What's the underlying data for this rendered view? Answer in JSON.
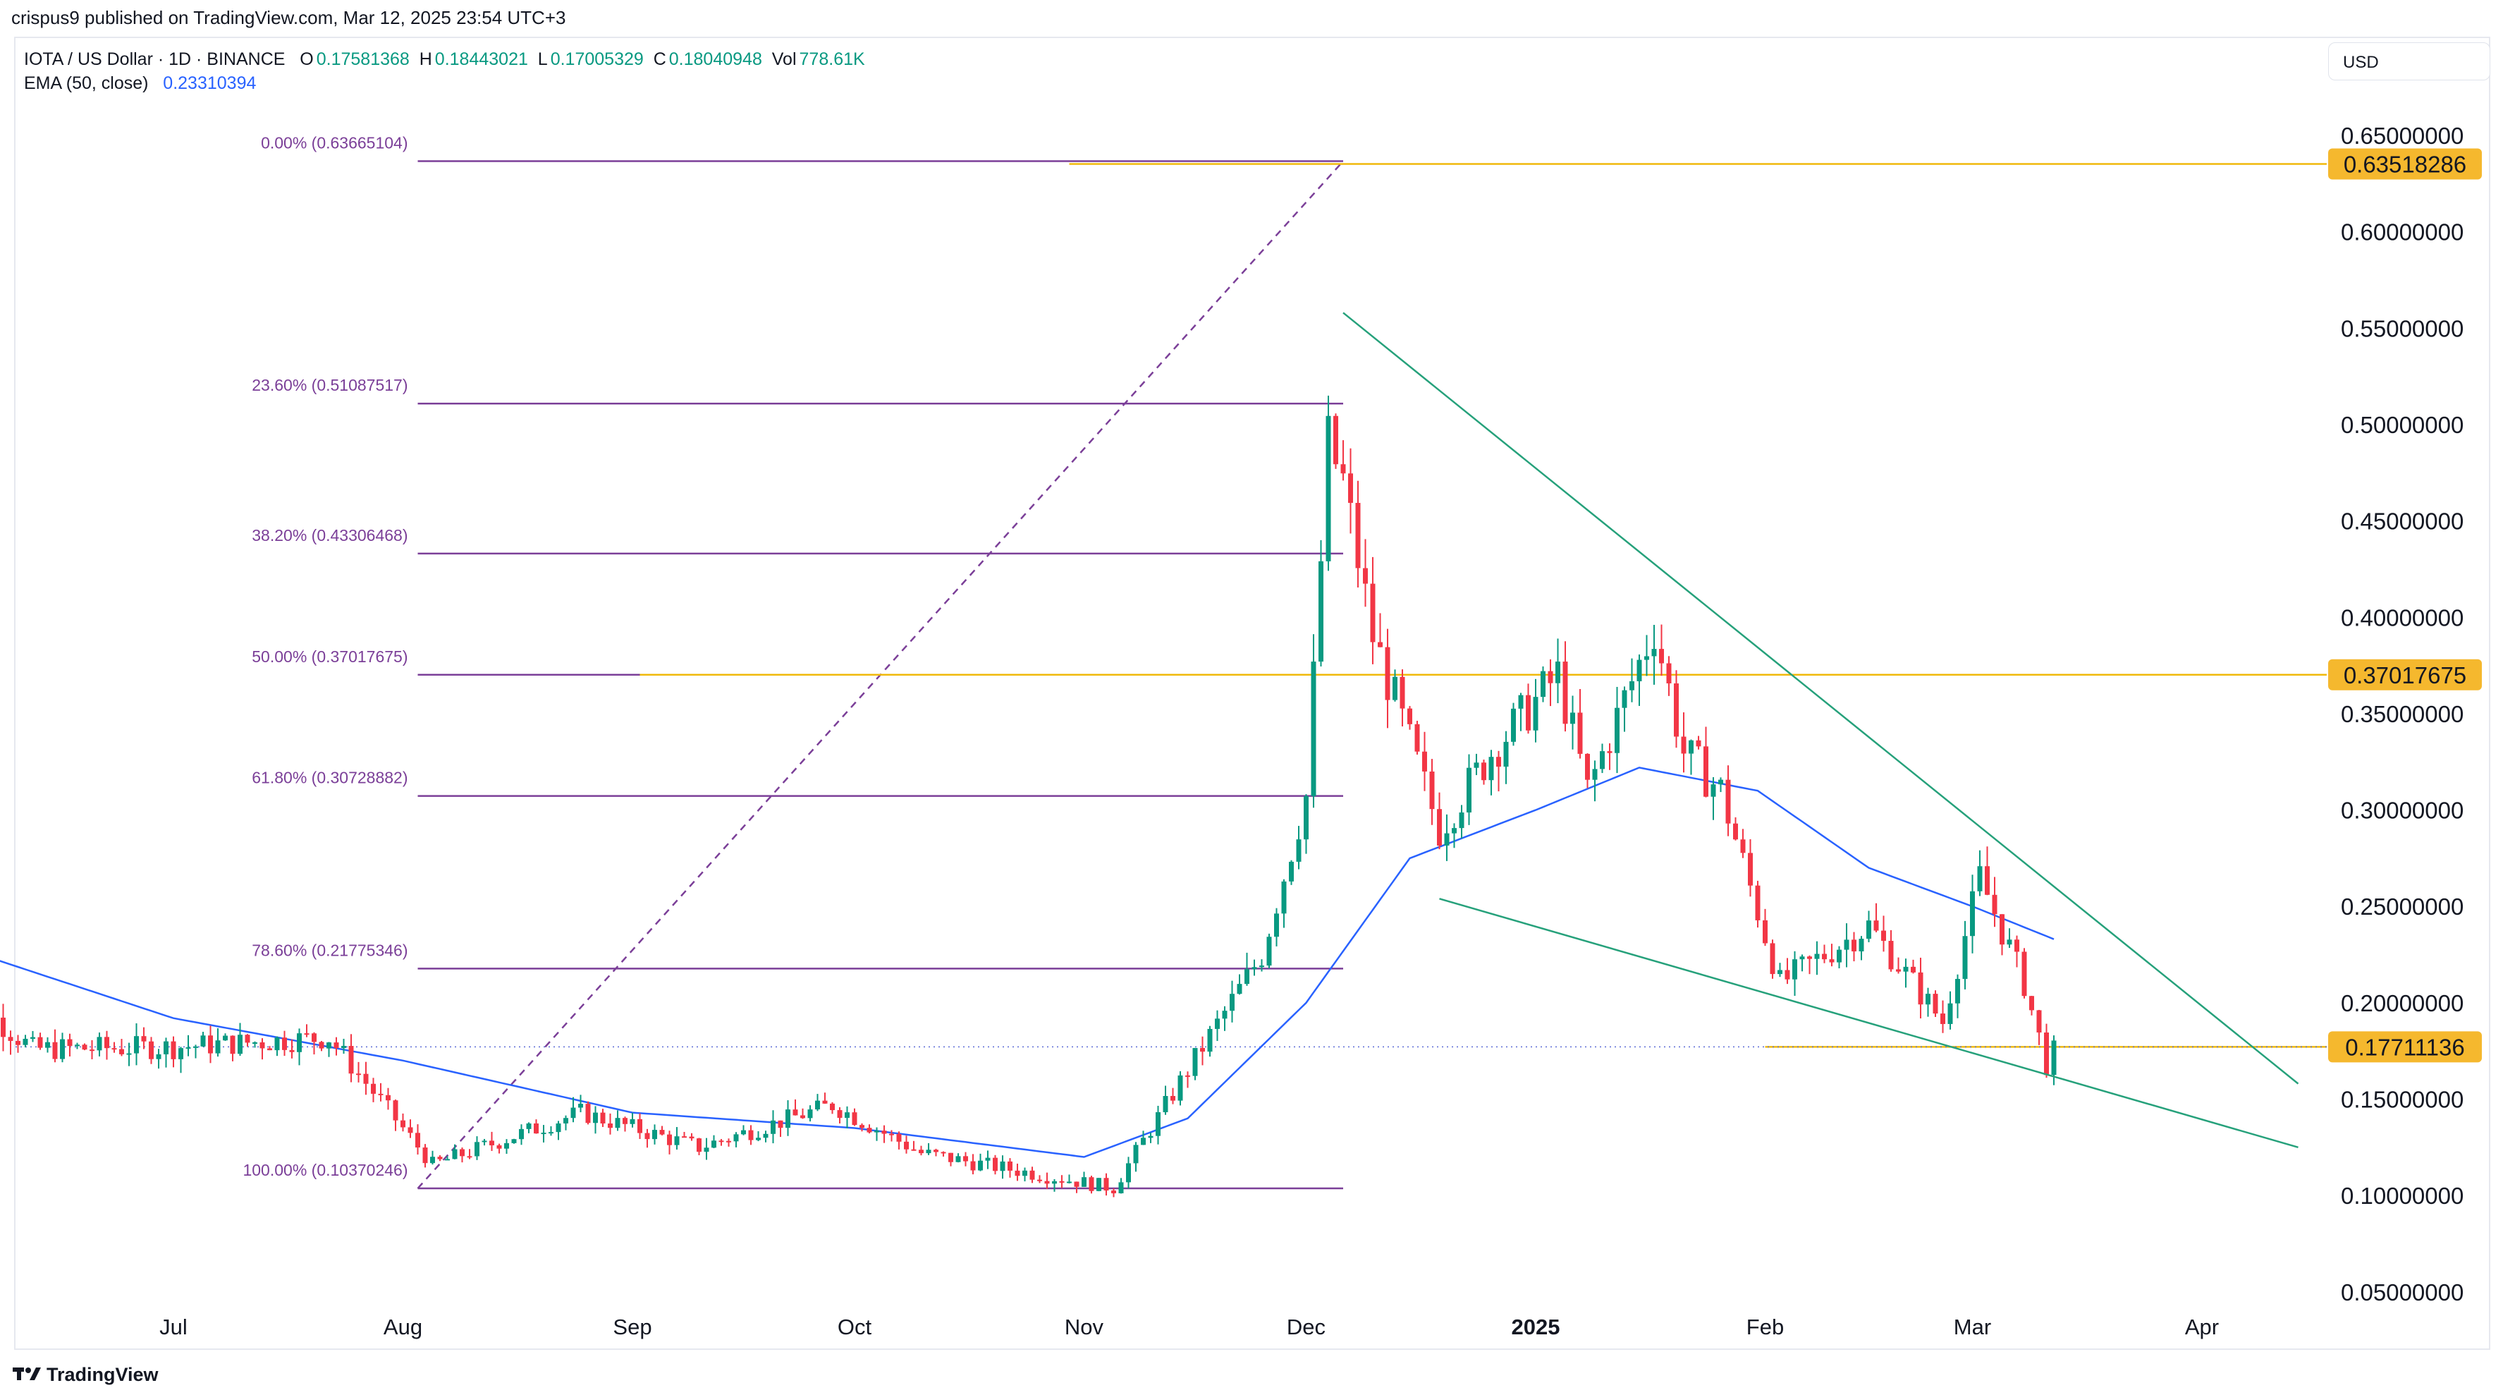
{
  "header": {
    "publish_line": "crispus9 published on TradingView.com, Mar 12, 2025 23:54 UTC+3",
    "symbol": "IOTA / US Dollar · 1D · BINANCE",
    "ohlc": [
      {
        "label": "O",
        "value": "0.17581368"
      },
      {
        "label": "H",
        "value": "0.18443021"
      },
      {
        "label": "L",
        "value": "0.17005329"
      },
      {
        "label": "C",
        "value": "0.18040948"
      }
    ],
    "vol_label": "Vol",
    "vol_value": "778.61K",
    "ema_label": "EMA (50, close)",
    "ema_value": "0.23310394",
    "currency_button": "USD"
  },
  "footer": {
    "brand": "TradingView",
    "logo_icon": "tradingview-logo-icon"
  },
  "colors": {
    "up": "#089981",
    "down": "#f23645",
    "ema": "#2962ff",
    "fib": "#7b3f98",
    "horizontal": "#f0b90b",
    "trend": "#26a17b",
    "price_tag": "#f5b82e"
  },
  "chart_data": {
    "type": "candlestick",
    "title": "IOTA / US Dollar · 1D · BINANCE",
    "xlabel": "",
    "ylabel": "",
    "ylim": [
      0.05,
      0.68
    ],
    "x_ticks": [
      "Jul",
      "Aug",
      "Sep",
      "Oct",
      "Nov",
      "Dec",
      "2025",
      "Feb",
      "Mar",
      "Apr"
    ],
    "x_tick_dates": [
      "2024-07-01",
      "2024-08-01",
      "2024-09-01",
      "2024-10-01",
      "2024-11-01",
      "2024-12-01",
      "2025-01-01",
      "2025-02-01",
      "2025-03-01",
      "2025-04-01"
    ],
    "y_ticks": [
      "0.65000000",
      "0.60000000",
      "0.55000000",
      "0.50000000",
      "0.45000000",
      "0.40000000",
      "0.35000000",
      "0.30000000",
      "0.25000000",
      "0.20000000",
      "0.15000000",
      "0.10000000",
      "0.05000000"
    ],
    "y_tick_values": [
      0.65,
      0.6,
      0.55,
      0.5,
      0.45,
      0.4,
      0.35,
      0.3,
      0.25,
      0.2,
      0.15,
      0.1,
      0.05
    ],
    "price_tags": [
      {
        "label": "0.63518286",
        "value": 0.63518286
      },
      {
        "label": "0.37017675",
        "value": 0.37017675
      },
      {
        "label": "0.17711136",
        "value": 0.17711136
      }
    ],
    "fib_levels": [
      {
        "label": "0.00% (0.63665104)",
        "value": 0.63665104
      },
      {
        "label": "23.60% (0.51087517)",
        "value": 0.51087517
      },
      {
        "label": "38.20% (0.43306468)",
        "value": 0.43306468
      },
      {
        "label": "50.00% (0.37017675)",
        "value": 0.37017675
      },
      {
        "label": "61.80% (0.30728882)",
        "value": 0.30728882
      },
      {
        "label": "78.60% (0.21775346)",
        "value": 0.21775346
      },
      {
        "label": "100.00% (0.10370246)",
        "value": 0.10370246
      }
    ],
    "fib_range": {
      "from_date": "2024-08-03",
      "to_date": "2024-12-06",
      "low": 0.10370246,
      "high": 0.63665104
    },
    "horizontal_lines": [
      {
        "value": 0.63518286,
        "from_date": "2024-10-30"
      },
      {
        "value": 0.37017675,
        "from_date": "2024-09-02"
      },
      {
        "value": 0.17711136,
        "from_date": "2025-02-01"
      }
    ],
    "trend_lines": [
      {
        "name": "upper",
        "points": [
          [
            "2024-12-06",
            0.558
          ],
          [
            "2025-04-14",
            0.158
          ]
        ]
      },
      {
        "name": "lower",
        "points": [
          [
            "2024-12-19",
            0.254
          ],
          [
            "2025-04-14",
            0.125
          ]
        ]
      }
    ],
    "last_price_line": 0.17711136,
    "key_points": [
      {
        "date": "2024-06-01",
        "close": 0.21
      },
      {
        "date": "2024-06-12",
        "close": 0.176
      },
      {
        "date": "2024-07-01",
        "close": 0.177
      },
      {
        "date": "2024-07-22",
        "close": 0.182
      },
      {
        "date": "2024-08-05",
        "close": 0.116
      },
      {
        "date": "2024-08-25",
        "close": 0.143
      },
      {
        "date": "2024-09-10",
        "close": 0.125
      },
      {
        "date": "2024-09-28",
        "close": 0.147
      },
      {
        "date": "2024-10-10",
        "close": 0.122
      },
      {
        "date": "2024-10-30",
        "close": 0.108
      },
      {
        "date": "2024-11-05",
        "close": 0.104
      },
      {
        "date": "2024-11-15",
        "close": 0.165
      },
      {
        "date": "2024-11-25",
        "close": 0.225
      },
      {
        "date": "2024-12-01",
        "close": 0.307
      },
      {
        "date": "2024-12-04",
        "close": 0.49
      },
      {
        "date": "2024-12-06",
        "close": 0.47
      },
      {
        "date": "2024-12-10",
        "close": 0.39
      },
      {
        "date": "2024-12-19",
        "close": 0.29
      },
      {
        "date": "2024-12-26",
        "close": 0.33
      },
      {
        "date": "2025-01-04",
        "close": 0.37
      },
      {
        "date": "2025-01-08",
        "close": 0.31
      },
      {
        "date": "2025-01-17",
        "close": 0.395
      },
      {
        "date": "2025-01-21",
        "close": 0.33
      },
      {
        "date": "2025-01-26",
        "close": 0.31
      },
      {
        "date": "2025-02-03",
        "close": 0.21
      },
      {
        "date": "2025-02-15",
        "close": 0.24
      },
      {
        "date": "2025-02-25",
        "close": 0.19
      },
      {
        "date": "2025-03-02",
        "close": 0.265
      },
      {
        "date": "2025-03-08",
        "close": 0.21
      },
      {
        "date": "2025-03-11",
        "close": 0.168
      },
      {
        "date": "2025-03-12",
        "close": 0.18040948
      }
    ],
    "ema_points": [
      {
        "date": "2024-06-01",
        "value": 0.23
      },
      {
        "date": "2024-07-01",
        "value": 0.192
      },
      {
        "date": "2024-08-01",
        "value": 0.17
      },
      {
        "date": "2024-09-01",
        "value": 0.143
      },
      {
        "date": "2024-10-01",
        "value": 0.135
      },
      {
        "date": "2024-11-01",
        "value": 0.12
      },
      {
        "date": "2024-11-15",
        "value": 0.14
      },
      {
        "date": "2024-12-01",
        "value": 0.2
      },
      {
        "date": "2024-12-15",
        "value": 0.275
      },
      {
        "date": "2025-01-01",
        "value": 0.3
      },
      {
        "date": "2025-01-15",
        "value": 0.322
      },
      {
        "date": "2025-01-31",
        "value": 0.31
      },
      {
        "date": "2025-02-15",
        "value": 0.27
      },
      {
        "date": "2025-03-01",
        "value": 0.25
      },
      {
        "date": "2025-03-12",
        "value": 0.233
      }
    ]
  }
}
